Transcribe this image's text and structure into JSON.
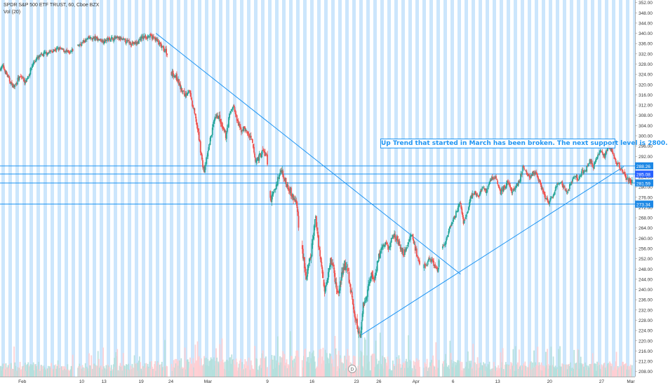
{
  "header": {
    "symbol_line": "SPDR S&P 500 ETF TRUST, 60, Cboe BZX",
    "volume_line": "Vol (20)"
  },
  "annotation_text": "Up Trend that started in March has been broken. The next support level is 2800.",
  "event_marker": "D",
  "chart_data": {
    "type": "candlestick",
    "title": "SPDR S&P 500 ETF TRUST, 60, Cboe BZX",
    "ylim": [
      206,
      353
    ],
    "y_ticks": [
      208,
      212,
      216,
      220,
      224,
      228,
      232,
      236,
      240,
      244,
      248,
      252,
      256,
      260,
      264,
      268,
      272,
      276,
      280,
      284,
      288,
      292,
      296,
      300,
      304,
      308,
      312,
      316,
      320,
      324,
      328,
      332,
      336,
      340,
      344,
      348,
      352
    ],
    "x_ticks": [
      {
        "label": "Feb",
        "d": 0
      },
      {
        "label": "10",
        "d": 8
      },
      {
        "label": "13",
        "d": 11
      },
      {
        "label": "19",
        "d": 16
      },
      {
        "label": "24",
        "d": 20
      },
      {
        "label": "Mar",
        "d": 25
      },
      {
        "label": "9",
        "d": 33
      },
      {
        "label": "16",
        "d": 39
      },
      {
        "label": "23",
        "d": 45
      },
      {
        "label": "26",
        "d": 48
      },
      {
        "label": "Apr",
        "d": 53
      },
      {
        "label": "6",
        "d": 58
      },
      {
        "label": "13",
        "d": 64
      },
      {
        "label": "20",
        "d": 71
      },
      {
        "label": "27",
        "d": 78
      },
      {
        "label": "Mar",
        "d": 82
      }
    ],
    "x_range": [
      -3,
      82.5
    ],
    "price_path": [
      [
        -3,
        326
      ],
      [
        -2.5,
        327
      ],
      [
        -2,
        324
      ],
      [
        -1.7,
        322
      ],
      [
        -1.3,
        320
      ],
      [
        -1,
        319
      ],
      [
        -0.5,
        322
      ],
      [
        0,
        323
      ],
      [
        0.5,
        321
      ],
      [
        1,
        324
      ],
      [
        1.5,
        328
      ],
      [
        2,
        330
      ],
      [
        3,
        332
      ],
      [
        4,
        333
      ],
      [
        5,
        334
      ],
      [
        6,
        333
      ],
      [
        6.5,
        332
      ],
      [
        7,
        334
      ],
      [
        8,
        336
      ],
      [
        9,
        338
      ],
      [
        10,
        338
      ],
      [
        11,
        337
      ],
      [
        12,
        338
      ],
      [
        13,
        338
      ],
      [
        14,
        337
      ],
      [
        15,
        336
      ],
      [
        15.5,
        336
      ],
      [
        16,
        338
      ],
      [
        17,
        339
      ],
      [
        18,
        338
      ],
      [
        18.5,
        336
      ],
      [
        19,
        334
      ],
      [
        19.5,
        333
      ],
      [
        20,
        325
      ],
      [
        20.5,
        324
      ],
      [
        21,
        322
      ],
      [
        21.5,
        318
      ],
      [
        22,
        316
      ],
      [
        22.5,
        318
      ],
      [
        23,
        312
      ],
      [
        23.5,
        306
      ],
      [
        24,
        297
      ],
      [
        24.3,
        290
      ],
      [
        24.6,
        286
      ],
      [
        25,
        292
      ],
      [
        25.5,
        300
      ],
      [
        26,
        306
      ],
      [
        26.5,
        308
      ],
      [
        27,
        303
      ],
      [
        27.5,
        300
      ],
      [
        28,
        308
      ],
      [
        28.5,
        312
      ],
      [
        29,
        306
      ],
      [
        29.5,
        302
      ],
      [
        30,
        303
      ],
      [
        31,
        298
      ],
      [
        31.5,
        290
      ],
      [
        32,
        292
      ],
      [
        32.5,
        294
      ],
      [
        33,
        292
      ],
      [
        33.3,
        280
      ],
      [
        33.6,
        275
      ],
      [
        34,
        278
      ],
      [
        34.5,
        283
      ],
      [
        35,
        287
      ],
      [
        35.5,
        282
      ],
      [
        36,
        280
      ],
      [
        36.5,
        276
      ],
      [
        37,
        274
      ],
      [
        37.5,
        260
      ],
      [
        38,
        252
      ],
      [
        38.3,
        244
      ],
      [
        38.6,
        248
      ],
      [
        39,
        254
      ],
      [
        39.3,
        262
      ],
      [
        39.6,
        268
      ],
      [
        40,
        258
      ],
      [
        40.4,
        248
      ],
      [
        40.8,
        240
      ],
      [
        41.2,
        246
      ],
      [
        41.6,
        252
      ],
      [
        42,
        248
      ],
      [
        42.3,
        242
      ],
      [
        42.6,
        238
      ],
      [
        43,
        244
      ],
      [
        43.5,
        250
      ],
      [
        44,
        246
      ],
      [
        44.3,
        240
      ],
      [
        44.6,
        234
      ],
      [
        45,
        228
      ],
      [
        45.3,
        224
      ],
      [
        45.6,
        222
      ],
      [
        46,
        234
      ],
      [
        46.5,
        238
      ],
      [
        47,
        246
      ],
      [
        47.5,
        244
      ],
      [
        48,
        252
      ],
      [
        48.5,
        256
      ],
      [
        49,
        258
      ],
      [
        49.5,
        256
      ],
      [
        50,
        262
      ],
      [
        50.5,
        260
      ],
      [
        51,
        256
      ],
      [
        51.5,
        254
      ],
      [
        52,
        258
      ],
      [
        52.5,
        262
      ],
      [
        53,
        256
      ],
      [
        53.5,
        250
      ],
      [
        54,
        248
      ],
      [
        54.5,
        250
      ],
      [
        55,
        252
      ],
      [
        55.5,
        250
      ],
      [
        56,
        247
      ],
      [
        56.5,
        256
      ],
      [
        57,
        258
      ],
      [
        57.5,
        262
      ],
      [
        58,
        266
      ],
      [
        58.5,
        270
      ],
      [
        59,
        274
      ],
      [
        59.5,
        266
      ],
      [
        60,
        270
      ],
      [
        60.5,
        276
      ],
      [
        61,
        278
      ],
      [
        61.5,
        276
      ],
      [
        62,
        280
      ],
      [
        62.5,
        278
      ],
      [
        63,
        282
      ],
      [
        63.5,
        284
      ],
      [
        64,
        283
      ],
      [
        64.5,
        278
      ],
      [
        65,
        280
      ],
      [
        65.5,
        282
      ],
      [
        66,
        278
      ],
      [
        66.5,
        280
      ],
      [
        67,
        282
      ],
      [
        67.5,
        288
      ],
      [
        68,
        286
      ],
      [
        68.5,
        284
      ],
      [
        69,
        286
      ],
      [
        69.5,
        284
      ],
      [
        70,
        280
      ],
      [
        70.5,
        276
      ],
      [
        71,
        274
      ],
      [
        71.5,
        276
      ],
      [
        72,
        280
      ],
      [
        72.5,
        282
      ],
      [
        73,
        280
      ],
      [
        73.5,
        278
      ],
      [
        74,
        282
      ],
      [
        74.5,
        284
      ],
      [
        75,
        283
      ],
      [
        75.5,
        286
      ],
      [
        76,
        287
      ],
      [
        76.5,
        290
      ],
      [
        77,
        288
      ],
      [
        77.5,
        292
      ],
      [
        78,
        294
      ],
      [
        78.5,
        292
      ],
      [
        79,
        296
      ],
      [
        79.5,
        294
      ],
      [
        80,
        290
      ],
      [
        80.5,
        288
      ],
      [
        81,
        286
      ],
      [
        81.5,
        283
      ],
      [
        82,
        282
      ]
    ],
    "volume_profile": [
      [
        -3,
        0.3
      ],
      [
        0,
        0.35
      ],
      [
        5,
        0.28
      ],
      [
        10,
        0.3
      ],
      [
        15,
        0.32
      ],
      [
        20,
        0.45
      ],
      [
        25,
        0.6
      ],
      [
        30,
        0.5
      ],
      [
        35,
        0.65
      ],
      [
        38,
        0.85
      ],
      [
        42,
        0.9
      ],
      [
        45,
        0.8
      ],
      [
        50,
        0.55
      ],
      [
        55,
        0.45
      ],
      [
        60,
        0.4
      ],
      [
        65,
        0.35
      ],
      [
        70,
        0.35
      ],
      [
        75,
        0.32
      ],
      [
        80,
        0.4
      ],
      [
        82,
        0.45
      ]
    ],
    "horizontal_levels": [
      {
        "price": 288.26,
        "label": "288.26",
        "color": "#1e88e5"
      },
      {
        "price": 285.08,
        "label": "285.08",
        "color": "#2962ff"
      },
      {
        "price": 281.59,
        "label": "281.59",
        "color": "#1e88e5"
      },
      {
        "price": 273.34,
        "label": "273.34",
        "color": "#1e88e5"
      }
    ],
    "trend_lines": [
      {
        "from": [
          18,
          340
        ],
        "to": [
          59,
          246
        ]
      },
      {
        "from": [
          45.5,
          222
        ],
        "to": [
          81,
          288
        ]
      }
    ],
    "colors": {
      "up": "#26a69a",
      "down": "#ef5350",
      "band": "#bbdefb",
      "line": "#2196f3",
      "vol_up": "#b2dfdb",
      "vol_down": "#ffcdd2",
      "axis_text": "#333333"
    }
  }
}
